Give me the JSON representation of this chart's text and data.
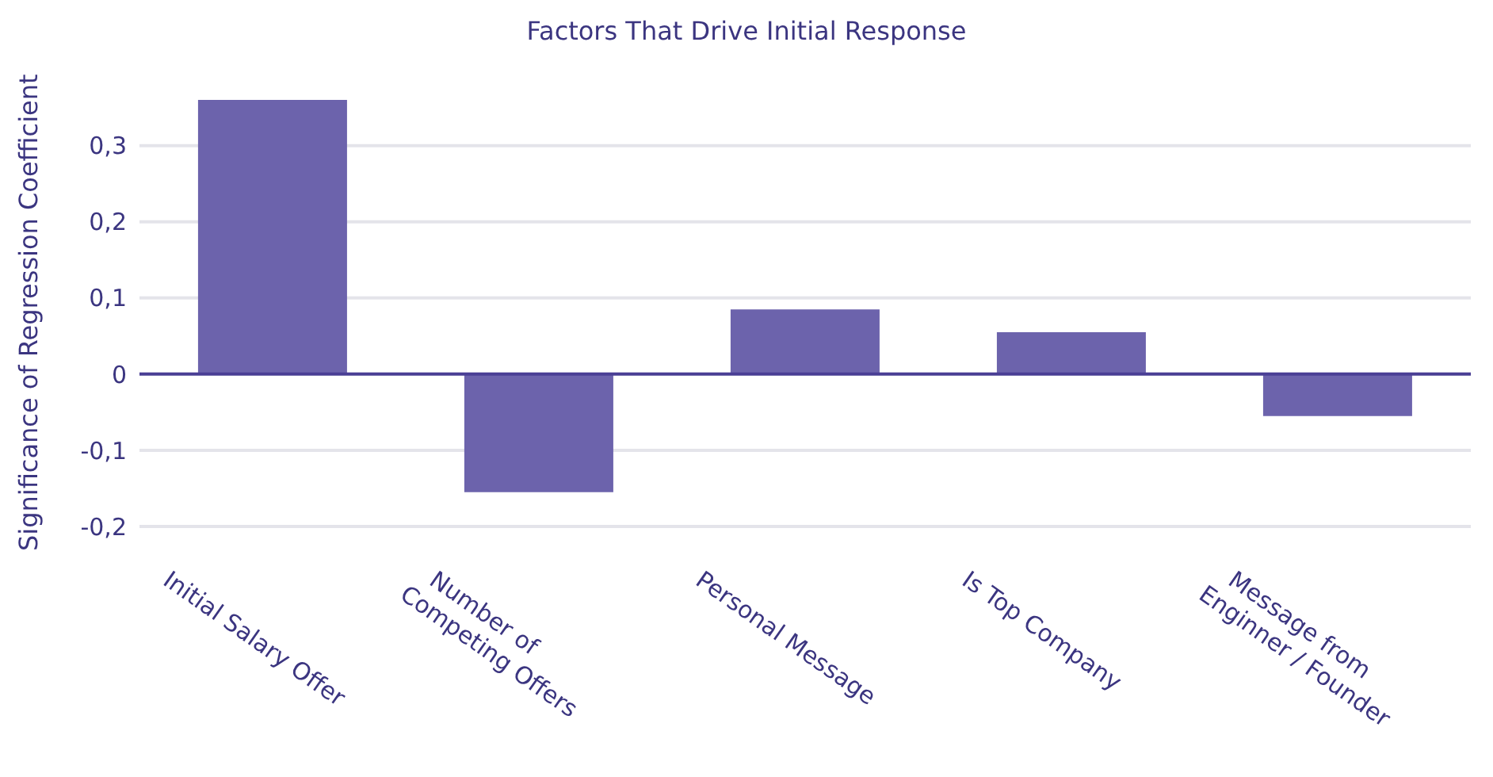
{
  "chart_data": {
    "type": "bar",
    "title": "Factors That Drive Initial Response",
    "ylabel": "Significance of Regression Coefficient",
    "categories": [
      "Initial Salary Offer",
      "Number of\nCompeting Offers",
      "Personal Message",
      "Is Top Company",
      "Message from\nEnginner  / Founder"
    ],
    "values": [
      0.36,
      -0.155,
      0.085,
      0.055,
      -0.055
    ],
    "color": "#6c63ac",
    "yticks": [
      {
        "value": -0.2,
        "label": "-0,2"
      },
      {
        "value": -0.1,
        "label": "-0,1"
      },
      0,
      {
        "value": 0.1,
        "label": "0,1"
      },
      {
        "value": 0.2,
        "label": "0,2"
      },
      {
        "value": 0.3,
        "label": "0,3"
      }
    ],
    "ylim": [
      -0.2,
      0.36
    ],
    "grid": "y",
    "legend": false,
    "ref_lines": [
      {
        "axis": "y",
        "value": 0,
        "color": "#4a3f95"
      }
    ]
  }
}
